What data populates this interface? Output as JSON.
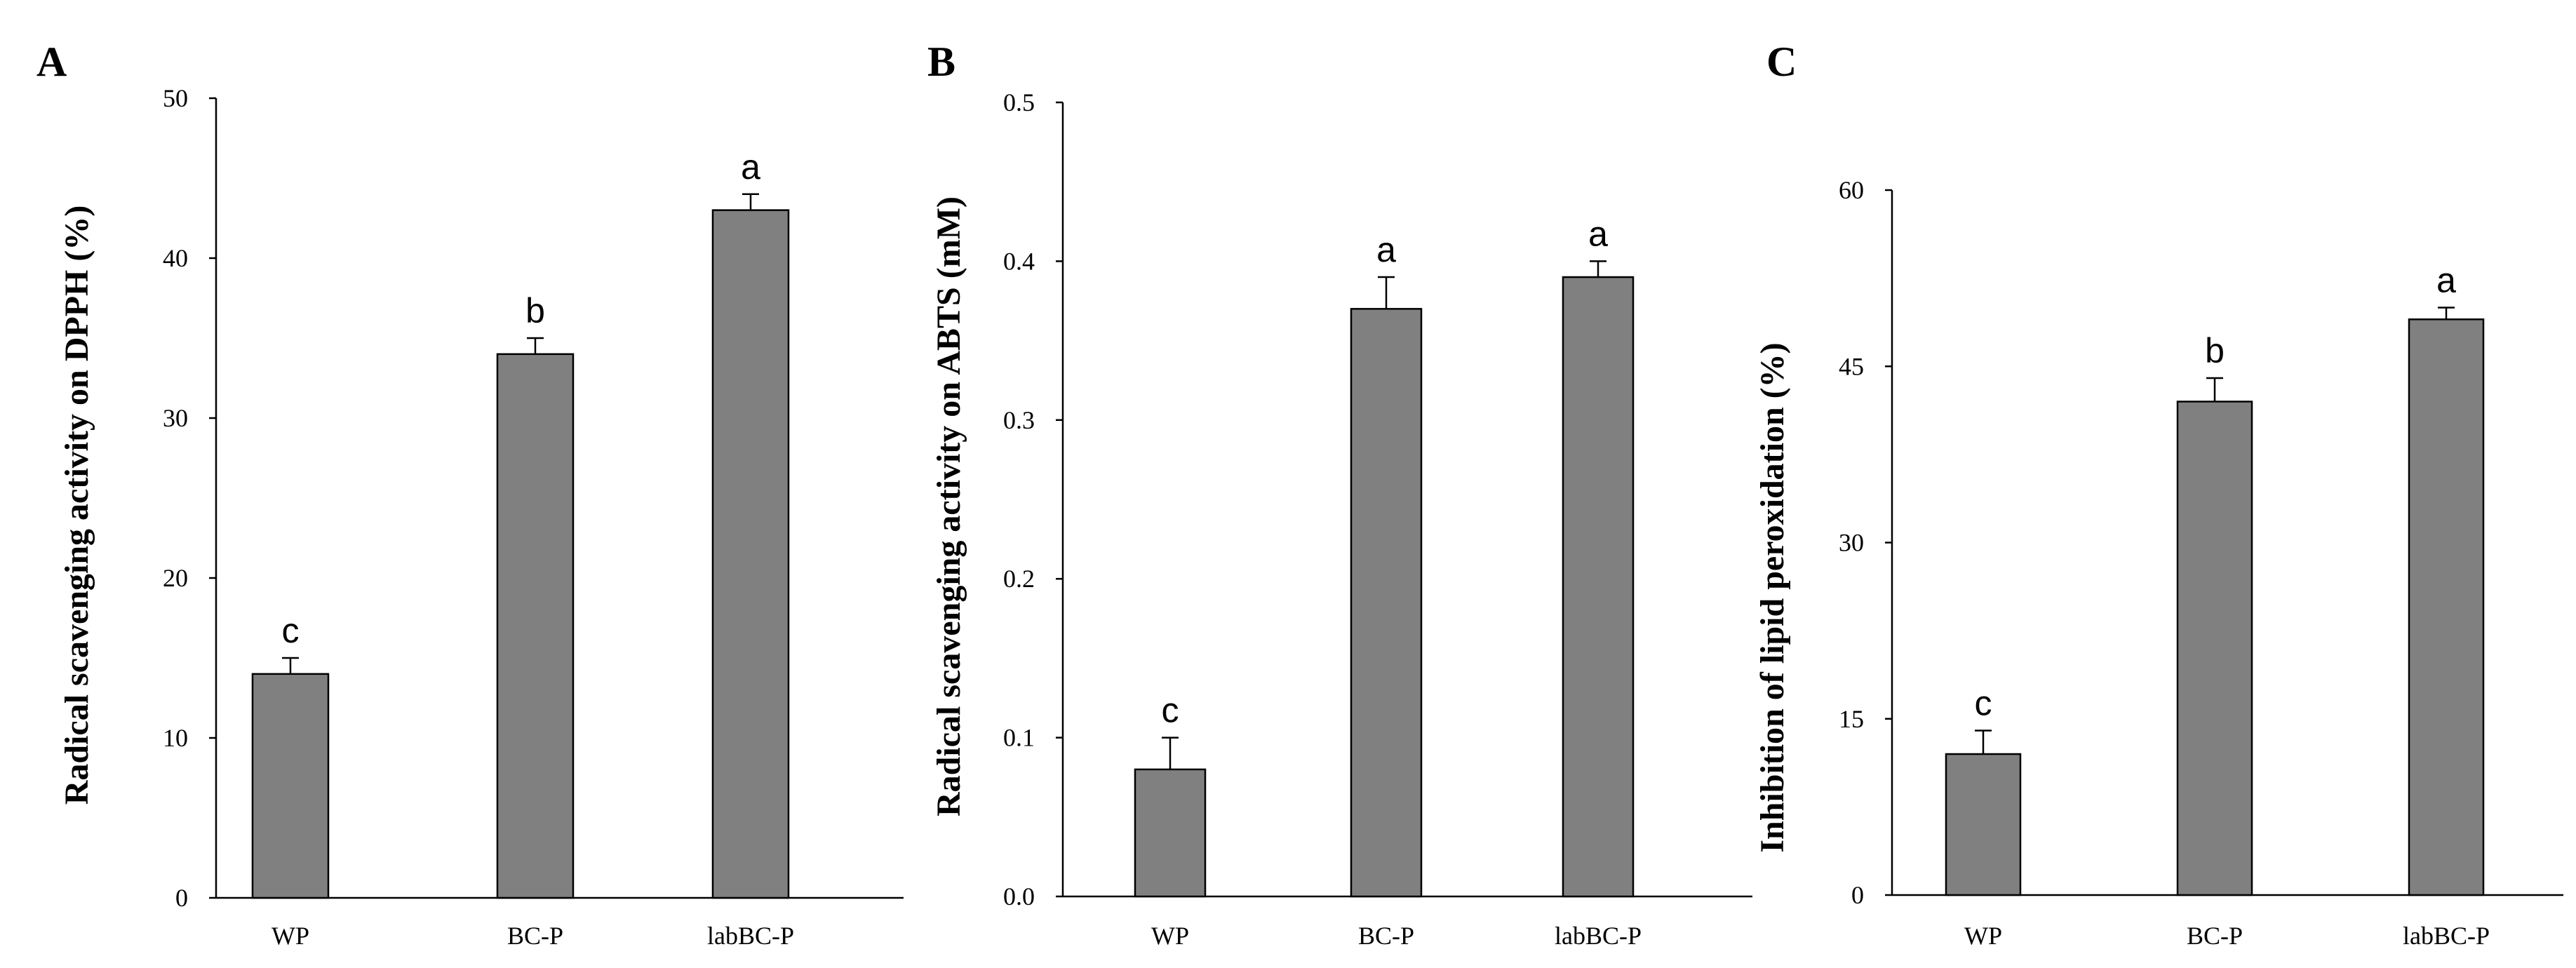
{
  "chart_data": [
    {
      "type": "bar",
      "panel": "A",
      "categories": [
        "WP",
        "BC-P",
        "labBC-P"
      ],
      "values": [
        14,
        34,
        43
      ],
      "errors": [
        1,
        1,
        1
      ],
      "significance": [
        "c",
        "b",
        "a"
      ],
      "ylabel": "Radical scavenging activity on DPPH (%)",
      "xlabel": "",
      "ylim": [
        0,
        50
      ],
      "yticks": [
        "0",
        "10",
        "20",
        "30",
        "40",
        "50"
      ]
    },
    {
      "type": "bar",
      "panel": "B",
      "categories": [
        "WP",
        "BC-P",
        "labBC-P"
      ],
      "values": [
        0.08,
        0.37,
        0.39
      ],
      "errors": [
        0.02,
        0.02,
        0.01
      ],
      "significance": [
        "c",
        "a",
        "a"
      ],
      "ylabel": "Radical scavenging activity on ABTS (mM)",
      "xlabel": "",
      "ylim": [
        0,
        0.5
      ],
      "yticks": [
        "0.0",
        "0.1",
        "0.2",
        "0.3",
        "0.4",
        "0.5"
      ]
    },
    {
      "type": "bar",
      "panel": "C",
      "categories": [
        "WP",
        "BC-P",
        "labBC-P"
      ],
      "values": [
        12,
        42,
        49
      ],
      "errors": [
        2,
        2,
        1
      ],
      "significance": [
        "c",
        "b",
        "a"
      ],
      "ylabel": "Inhibition of lipid peroxidation (%)",
      "xlabel": "",
      "ylim": [
        0,
        60
      ],
      "yticks": [
        "0",
        "15",
        "30",
        "45",
        "60"
      ]
    }
  ]
}
